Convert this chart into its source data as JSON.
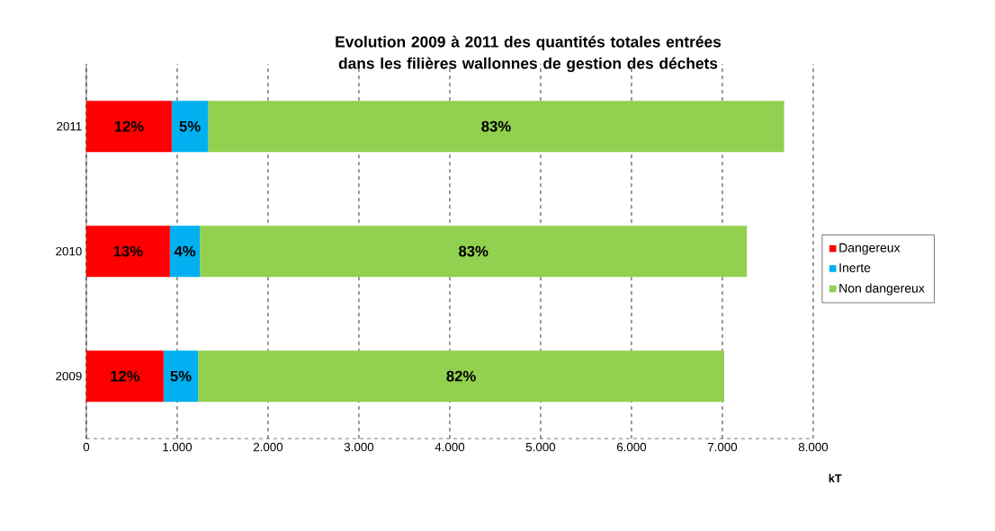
{
  "chart_data": {
    "type": "bar",
    "orientation": "horizontal",
    "stacked": true,
    "title": "Evolution 2009 à 2011 des quantités totales entrées dans les filières wallonnes de gestion des déchets",
    "xlabel": "kT",
    "categories": [
      "2011",
      "2010",
      "2009"
    ],
    "series": [
      {
        "name": "Dangereux",
        "color": "#ff0000",
        "values": [
          940,
          920,
          850
        ]
      },
      {
        "name": "Inerte",
        "color": "#00b0f0",
        "values": [
          400,
          330,
          380
        ]
      },
      {
        "name": "Non dangereux",
        "color": "#92d050",
        "values": [
          6340,
          6020,
          5790
        ]
      }
    ],
    "annotations": [
      "12%",
      "5%",
      "83%",
      "13%",
      "4%",
      "83%",
      "12%",
      "5%",
      "82%"
    ],
    "xlim": [
      0,
      8000
    ],
    "xticks": [
      0,
      {
        "value": 1000,
        "label": "1.000"
      },
      {
        "value": 2000,
        "label": "2.000"
      },
      {
        "value": 3000,
        "label": "3.000"
      },
      {
        "value": 4000,
        "label": "4.000"
      },
      {
        "value": 5000,
        "label": "5.000"
      },
      {
        "value": 6000,
        "label": "6.000"
      },
      {
        "value": 7000,
        "label": "7.000"
      },
      {
        "value": 8000,
        "label": "8.000"
      }
    ],
    "grid": "x",
    "legend": "right"
  }
}
